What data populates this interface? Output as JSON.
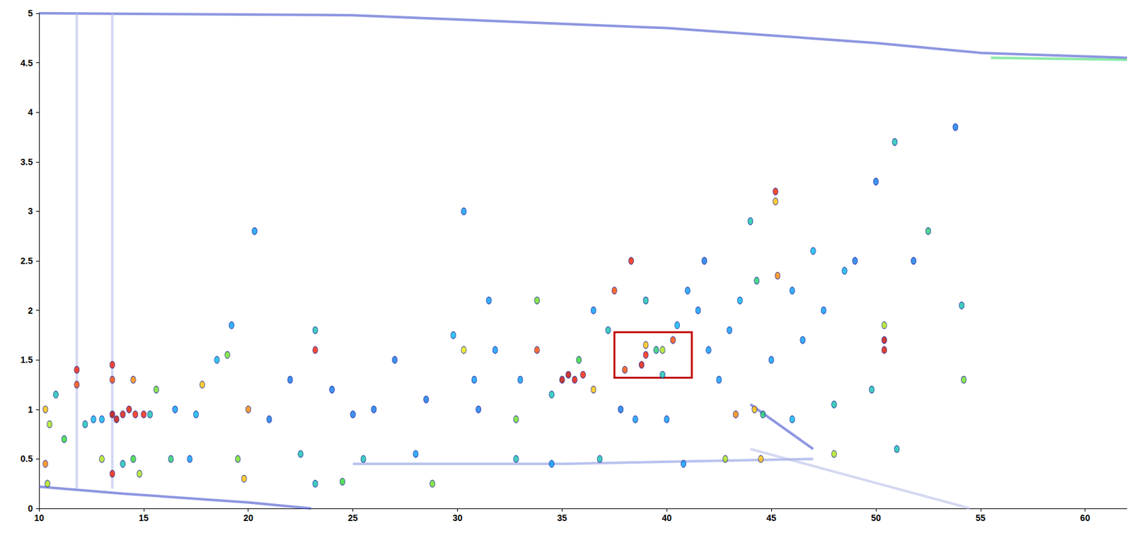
{
  "chart_data": {
    "type": "scatter",
    "xlim": [
      10,
      62
    ],
    "xticks": [
      10,
      15,
      20,
      25,
      30,
      35,
      40,
      45,
      50,
      55,
      60
    ],
    "ylim": [
      0,
      5
    ],
    "yticks": [
      0,
      0.5,
      1,
      1.5,
      2,
      2.5,
      3,
      3.5,
      4,
      4.5,
      5
    ],
    "grid": false,
    "zlim": [
      0,
      100
    ],
    "peaks": [
      [
        10.3,
        1.0,
        70
      ],
      [
        10.5,
        0.85,
        60
      ],
      [
        10.3,
        0.45,
        75
      ],
      [
        10.4,
        0.25,
        60
      ],
      [
        10.8,
        1.15,
        40
      ],
      [
        11.2,
        0.7,
        50
      ],
      [
        11.8,
        1.4,
        85
      ],
      [
        11.8,
        1.25,
        80
      ],
      [
        12.2,
        0.85,
        40
      ],
      [
        12.6,
        0.9,
        35
      ],
      [
        13.0,
        0.9,
        35
      ],
      [
        13.0,
        0.5,
        60
      ],
      [
        13.5,
        1.45,
        85
      ],
      [
        13.5,
        1.3,
        80
      ],
      [
        13.5,
        0.95,
        95
      ],
      [
        13.7,
        0.9,
        95
      ],
      [
        14.0,
        0.95,
        90
      ],
      [
        14.3,
        1.0,
        90
      ],
      [
        14.6,
        0.95,
        85
      ],
      [
        15.0,
        0.95,
        85
      ],
      [
        14.5,
        1.3,
        75
      ],
      [
        13.5,
        0.35,
        85
      ],
      [
        14.0,
        0.45,
        40
      ],
      [
        14.5,
        0.5,
        50
      ],
      [
        14.8,
        0.35,
        60
      ],
      [
        15.3,
        0.95,
        40
      ],
      [
        15.6,
        1.2,
        55
      ],
      [
        16.3,
        0.5,
        45
      ],
      [
        17.2,
        0.5,
        30
      ],
      [
        17.5,
        0.95,
        35
      ],
      [
        17.8,
        1.25,
        70
      ],
      [
        18.5,
        1.5,
        35
      ],
      [
        19.0,
        1.55,
        55
      ],
      [
        19.2,
        1.85,
        30
      ],
      [
        19.5,
        0.5,
        55
      ],
      [
        19.8,
        0.3,
        70
      ],
      [
        20.0,
        1.0,
        75
      ],
      [
        20.3,
        2.8,
        30
      ],
      [
        22.5,
        0.55,
        40
      ],
      [
        23.2,
        1.6,
        85
      ],
      [
        23.2,
        1.8,
        40
      ],
      [
        23.2,
        0.25,
        40
      ],
      [
        24.5,
        0.27,
        50
      ],
      [
        25.5,
        0.5,
        40
      ],
      [
        28.0,
        0.55,
        30
      ],
      [
        28.8,
        0.25,
        55
      ],
      [
        29.8,
        1.75,
        35
      ],
      [
        30.3,
        3.0,
        30
      ],
      [
        30.3,
        1.6,
        65
      ],
      [
        31.5,
        2.1,
        30
      ],
      [
        31.8,
        1.6,
        30
      ],
      [
        32.8,
        0.9,
        55
      ],
      [
        32.8,
        0.5,
        40
      ],
      [
        33.8,
        1.6,
        80
      ],
      [
        33.8,
        2.1,
        55
      ],
      [
        34.5,
        1.15,
        40
      ],
      [
        35.0,
        1.3,
        95
      ],
      [
        35.3,
        1.35,
        95
      ],
      [
        35.6,
        1.3,
        90
      ],
      [
        36.0,
        1.35,
        85
      ],
      [
        35.8,
        1.5,
        50
      ],
      [
        36.5,
        1.2,
        70
      ],
      [
        36.8,
        0.5,
        40
      ],
      [
        37.2,
        1.8,
        40
      ],
      [
        37.5,
        2.2,
        80
      ],
      [
        38.0,
        1.4,
        80
      ],
      [
        38.3,
        2.5,
        85
      ],
      [
        38.8,
        1.45,
        90
      ],
      [
        39.0,
        1.55,
        85
      ],
      [
        39.0,
        1.65,
        70
      ],
      [
        39.5,
        1.6,
        45
      ],
      [
        39.8,
        1.35,
        40
      ],
      [
        39.8,
        1.6,
        60
      ],
      [
        40.3,
        1.7,
        80
      ],
      [
        40.5,
        1.85,
        35
      ],
      [
        39.0,
        2.1,
        40
      ],
      [
        40.0,
        0.9,
        30
      ],
      [
        41.5,
        2.0,
        30
      ],
      [
        42.0,
        1.6,
        30
      ],
      [
        43.3,
        0.95,
        75
      ],
      [
        43.5,
        2.1,
        35
      ],
      [
        44.0,
        2.9,
        40
      ],
      [
        44.2,
        1.0,
        70
      ],
      [
        44.3,
        2.3,
        45
      ],
      [
        44.5,
        0.5,
        70
      ],
      [
        44.6,
        0.95,
        45
      ],
      [
        45.2,
        3.2,
        85
      ],
      [
        45.2,
        3.1,
        70
      ],
      [
        45.3,
        2.35,
        75
      ],
      [
        46.0,
        0.9,
        35
      ],
      [
        47.0,
        2.6,
        35
      ],
      [
        48.0,
        0.55,
        60
      ],
      [
        48.0,
        1.05,
        40
      ],
      [
        48.5,
        2.4,
        35
      ],
      [
        49.8,
        1.2,
        40
      ],
      [
        50.4,
        1.7,
        95
      ],
      [
        50.4,
        1.6,
        90
      ],
      [
        50.4,
        1.85,
        60
      ],
      [
        50.9,
        3.7,
        40
      ],
      [
        51.0,
        0.6,
        40
      ],
      [
        52.5,
        2.8,
        45
      ],
      [
        54.1,
        2.05,
        40
      ],
      [
        54.2,
        1.3,
        55
      ],
      [
        53.8,
        3.85,
        25
      ],
      [
        42.5,
        1.3,
        30
      ],
      [
        41.0,
        2.2,
        30
      ],
      [
        34.5,
        0.45,
        30
      ],
      [
        40.8,
        0.45,
        30
      ],
      [
        42.8,
        0.5,
        60
      ],
      [
        38.5,
        0.9,
        30
      ],
      [
        46.5,
        1.7,
        30
      ],
      [
        47.5,
        2.0,
        30
      ],
      [
        30.8,
        1.3,
        30
      ],
      [
        28.5,
        1.1,
        25
      ],
      [
        26.0,
        1.0,
        25
      ],
      [
        22.0,
        1.3,
        25
      ],
      [
        25.0,
        0.95,
        25
      ],
      [
        45.0,
        1.5,
        30
      ],
      [
        43.0,
        1.8,
        30
      ],
      [
        27.0,
        1.5,
        25
      ],
      [
        31.0,
        1.0,
        25
      ],
      [
        33.0,
        1.3,
        30
      ],
      [
        36.5,
        2.0,
        30
      ],
      [
        37.8,
        1.0,
        25
      ],
      [
        41.8,
        2.5,
        25
      ],
      [
        46.0,
        2.2,
        30
      ],
      [
        49.0,
        2.5,
        25
      ],
      [
        50.0,
        3.3,
        25
      ],
      [
        51.8,
        2.5,
        25
      ],
      [
        21.0,
        0.9,
        25
      ],
      [
        24.0,
        1.2,
        25
      ],
      [
        16.5,
        1.0,
        30
      ]
    ],
    "streaks": [
      {
        "color": "#3040c8",
        "values": [
          [
            10,
            5
          ],
          [
            25,
            4.98
          ],
          [
            40,
            4.85
          ],
          [
            50,
            4.7
          ],
          [
            55,
            4.6
          ],
          [
            62,
            4.55
          ]
        ]
      },
      {
        "color": "#2fd860",
        "values": [
          [
            55.5,
            4.55
          ],
          [
            62,
            4.53
          ]
        ]
      },
      {
        "color": "#3040c8",
        "values": [
          [
            10,
            0.22
          ],
          [
            14,
            0.15
          ],
          [
            20,
            0.06
          ],
          [
            23,
            0
          ]
        ]
      },
      {
        "color": "#8090e0",
        "values": [
          [
            25,
            0.45
          ],
          [
            35,
            0.45
          ],
          [
            47,
            0.5
          ]
        ]
      },
      {
        "color": "#3040c8",
        "values": [
          [
            44,
            1.05
          ],
          [
            47,
            0.6
          ]
        ]
      },
      {
        "color": "#b0b8e8",
        "values": [
          [
            44,
            0.6
          ],
          [
            54.5,
            0
          ]
        ]
      },
      {
        "color": "#b0b8e8",
        "values": [
          [
            11.8,
            0.2
          ],
          [
            11.8,
            5
          ]
        ]
      },
      {
        "color": "#b0b8e8",
        "values": [
          [
            13.5,
            0.2
          ],
          [
            13.5,
            5
          ]
        ]
      }
    ],
    "highlight": {
      "xlim": [
        37.5,
        41.2
      ],
      "ylim": [
        1.32,
        1.78
      ],
      "color": "#c00000"
    }
  }
}
